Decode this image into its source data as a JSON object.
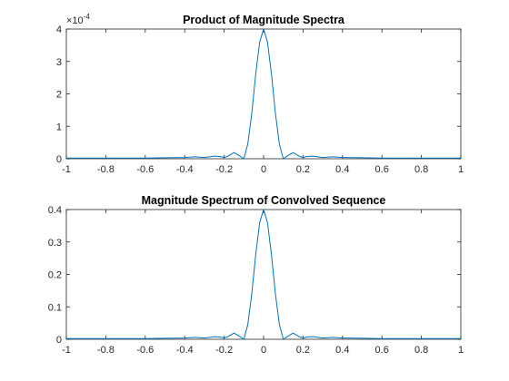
{
  "chart_data": [
    {
      "type": "line",
      "title": "Product of Magnitude Spectra",
      "xlabel": "",
      "ylabel": "",
      "xlim": [
        -1,
        1
      ],
      "ylim": [
        0,
        4
      ],
      "x_ticks": [
        "-1",
        "-0.8",
        "-0.6",
        "-0.4",
        "-0.2",
        "0",
        "0.2",
        "0.4",
        "0.6",
        "0.8",
        "1"
      ],
      "x_tick_values": [
        -1,
        -0.8,
        -0.6,
        -0.4,
        -0.2,
        0,
        0.2,
        0.4,
        0.6,
        0.8,
        1
      ],
      "y_ticks": [
        "0",
        "1",
        "2",
        "3",
        "4"
      ],
      "y_tick_values": [
        0,
        1,
        2,
        3,
        4
      ],
      "y_exponent_base": "×10",
      "y_exponent_power": "-4",
      "grid": false,
      "legend": "none",
      "color": "#0072bd",
      "series": [
        {
          "x": [
            -1,
            -0.6,
            -0.5,
            -0.4,
            -0.35,
            -0.3,
            -0.25,
            -0.22,
            -0.2,
            -0.18,
            -0.15,
            -0.12,
            -0.1,
            -0.08,
            -0.06,
            -0.04,
            -0.02,
            0,
            0.02,
            0.04,
            0.06,
            0.08,
            0.1,
            0.12,
            0.15,
            0.18,
            0.2,
            0.22,
            0.25,
            0.3,
            0.35,
            0.4,
            0.5,
            0.6,
            1
          ],
          "y": [
            0.02,
            0.02,
            0.03,
            0.04,
            0.06,
            0.04,
            0.08,
            0.07,
            0.04,
            0.08,
            0.19,
            0.08,
            0.0,
            0.45,
            1.4,
            2.6,
            3.6,
            4.0,
            3.6,
            2.6,
            1.4,
            0.45,
            0.0,
            0.08,
            0.19,
            0.08,
            0.04,
            0.07,
            0.08,
            0.04,
            0.06,
            0.04,
            0.03,
            0.02,
            0.02
          ]
        }
      ]
    },
    {
      "type": "line",
      "title": "Magnitude Spectrum of Convolved Sequence",
      "xlabel": "",
      "ylabel": "",
      "xlim": [
        -1,
        1
      ],
      "ylim": [
        0,
        0.4
      ],
      "x_ticks": [
        "-1",
        "-0.8",
        "-0.6",
        "-0.4",
        "-0.2",
        "0",
        "0.2",
        "0.4",
        "0.6",
        "0.8",
        "1"
      ],
      "x_tick_values": [
        -1,
        -0.8,
        -0.6,
        -0.4,
        -0.2,
        0,
        0.2,
        0.4,
        0.6,
        0.8,
        1
      ],
      "y_ticks": [
        "0",
        "0.1",
        "0.2",
        "0.3",
        "0.4"
      ],
      "y_tick_values": [
        0,
        0.1,
        0.2,
        0.3,
        0.4
      ],
      "grid": false,
      "legend": "none",
      "color": "#0072bd",
      "series": [
        {
          "x": [
            -1,
            -0.6,
            -0.5,
            -0.4,
            -0.35,
            -0.3,
            -0.25,
            -0.22,
            -0.2,
            -0.18,
            -0.15,
            -0.12,
            -0.1,
            -0.08,
            -0.06,
            -0.04,
            -0.02,
            0,
            0.02,
            0.04,
            0.06,
            0.08,
            0.1,
            0.12,
            0.15,
            0.18,
            0.2,
            0.22,
            0.25,
            0.3,
            0.35,
            0.4,
            0.5,
            0.6,
            1
          ],
          "y": [
            0.002,
            0.002,
            0.003,
            0.004,
            0.006,
            0.004,
            0.008,
            0.007,
            0.004,
            0.008,
            0.019,
            0.008,
            0.0,
            0.045,
            0.14,
            0.26,
            0.36,
            0.4,
            0.36,
            0.26,
            0.14,
            0.045,
            0.0,
            0.008,
            0.019,
            0.008,
            0.004,
            0.007,
            0.008,
            0.004,
            0.006,
            0.004,
            0.003,
            0.002,
            0.002
          ]
        }
      ]
    }
  ]
}
